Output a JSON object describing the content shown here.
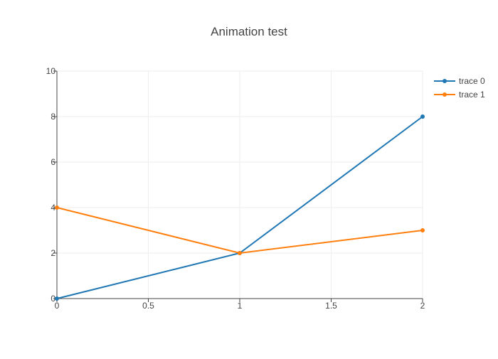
{
  "chart_data": {
    "type": "line",
    "title": "Animation test",
    "xlabel": "",
    "ylabel": "",
    "xlim": [
      0,
      2
    ],
    "ylim": [
      0,
      10
    ],
    "x_ticks": [
      0,
      0.5,
      1,
      1.5,
      2
    ],
    "y_ticks": [
      0,
      2,
      4,
      6,
      8,
      10
    ],
    "x_tick_labels": [
      "0",
      "0.5",
      "1",
      "1.5",
      "2"
    ],
    "y_tick_labels": [
      "0",
      "2",
      "4",
      "6",
      "8",
      "10"
    ],
    "x": [
      0,
      1,
      2
    ],
    "series": [
      {
        "name": "trace 0",
        "values": [
          0,
          2,
          8
        ],
        "color": "#1f77b4"
      },
      {
        "name": "trace 1",
        "values": [
          4,
          2,
          3
        ],
        "color": "#ff7f0e"
      }
    ],
    "grid": true,
    "legend_position": "top-right",
    "mode": "lines+markers"
  }
}
